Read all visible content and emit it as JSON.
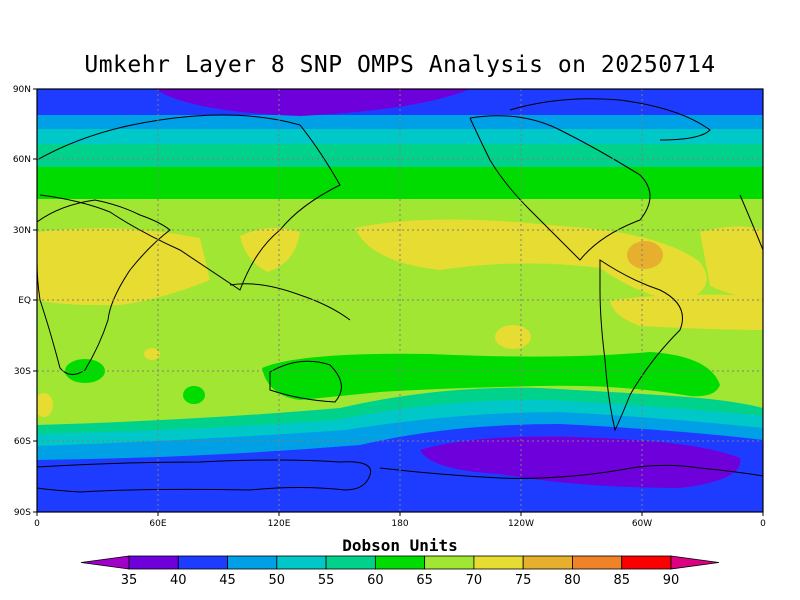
{
  "title": "Umkehr Layer 8 SNP OMPS Analysis on 20250714",
  "lat_ticks": [
    "90N",
    "60N",
    "30N",
    "EQ",
    "30S",
    "60S",
    "90S"
  ],
  "lon_ticks": [
    "0",
    "60E",
    "120E",
    "180",
    "120W",
    "60W",
    "0"
  ],
  "colorbar": {
    "title": "Dobson Units",
    "levels": [
      "35",
      "40",
      "45",
      "50",
      "55",
      "60",
      "65",
      "70",
      "75",
      "80",
      "85",
      "90"
    ],
    "colors": [
      "#a000c8",
      "#6e00dc",
      "#1e3cff",
      "#00a0e6",
      "#00c8c8",
      "#00d28c",
      "#00dc00",
      "#a0e632",
      "#e6dc32",
      "#e6af2d",
      "#f08228",
      "#fa0000",
      "#dc0082"
    ]
  }
}
